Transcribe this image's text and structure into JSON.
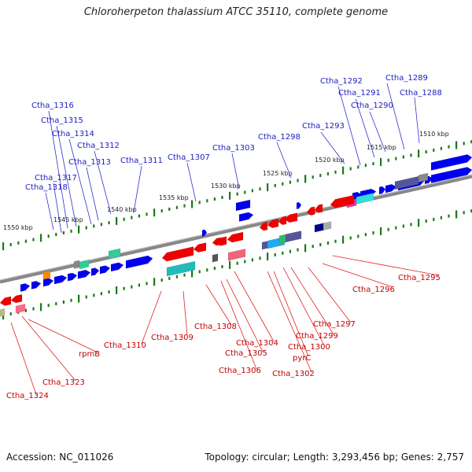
{
  "title": "Chloroherpeton thalassium ATCC 35110, complete genome",
  "accession": "Accession: NC_011026",
  "summary": "Topology: circular; Length: 3,293,456 bp; Genes: 2,757",
  "colors": {
    "forward": "#0000ee",
    "reverse": "#ee0000",
    "backbone": "#888888",
    "tick": "#1a7a1a"
  },
  "kbp_labels": [
    "1510 kbp",
    "1515 kbp",
    "1520 kbp",
    "1525 kbp",
    "1530 kbp",
    "1535 kbp",
    "1540 kbp",
    "1545 kbp",
    "1550 kbp"
  ],
  "top_labels": [
    "Ctha_1288",
    "Ctha_1289",
    "Ctha_1290",
    "Ctha_1291",
    "Ctha_1292",
    "Ctha_1293",
    "Ctha_1298",
    "Ctha_1303",
    "Ctha_1307",
    "Ctha_1311",
    "Ctha_1312",
    "Ctha_1313",
    "Ctha_1314",
    "Ctha_1315",
    "Ctha_1316",
    "Ctha_1317",
    "Ctha_1318"
  ],
  "bottom_labels": [
    "Ctha_1295",
    "Ctha_1296",
    "Ctha_1297",
    "Ctha_1299",
    "Ctha_1300",
    "pyrC",
    "Ctha_1302",
    "Ctha_1304",
    "Ctha_1305",
    "Ctha_1306",
    "Ctha_1308",
    "Ctha_1309",
    "Ctha_1310",
    "rpmB",
    "Ctha_1323",
    "Ctha_1324"
  ]
}
